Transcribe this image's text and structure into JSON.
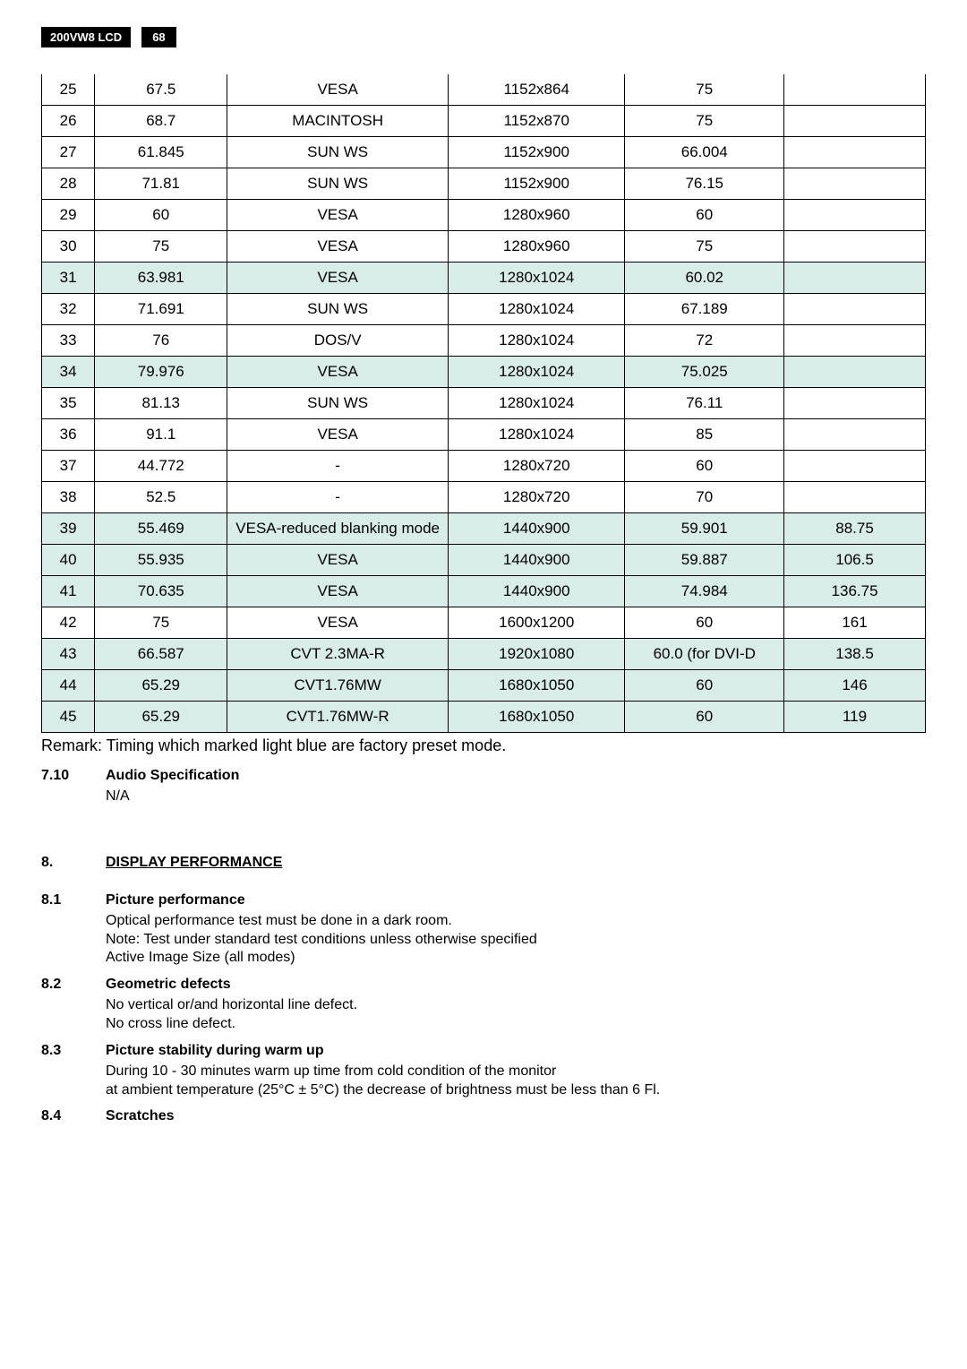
{
  "header": {
    "model": "200VW8 LCD",
    "page": "68"
  },
  "timing": {
    "col_widths_pct": [
      6,
      15,
      25,
      20,
      18,
      16
    ],
    "border_color": "#000000",
    "highlight_bg": "#d8ece9",
    "rows": [
      {
        "hl": false,
        "c": [
          "25",
          "67.5",
          "VESA",
          "1152x864",
          "75",
          ""
        ]
      },
      {
        "hl": false,
        "c": [
          "26",
          "68.7",
          "MACINTOSH",
          "1152x870",
          "75",
          ""
        ]
      },
      {
        "hl": false,
        "c": [
          "27",
          "61.845",
          "SUN WS",
          "1152x900",
          "66.004",
          ""
        ]
      },
      {
        "hl": false,
        "c": [
          "28",
          "71.81",
          "SUN WS",
          "1152x900",
          "76.15",
          ""
        ]
      },
      {
        "hl": false,
        "c": [
          "29",
          "60",
          "VESA",
          "1280x960",
          "60",
          ""
        ]
      },
      {
        "hl": false,
        "c": [
          "30",
          "75",
          "VESA",
          "1280x960",
          "75",
          ""
        ]
      },
      {
        "hl": true,
        "c": [
          "31",
          "63.981",
          "VESA",
          "1280x1024",
          "60.02",
          ""
        ]
      },
      {
        "hl": false,
        "c": [
          "32",
          "71.691",
          "SUN WS",
          "1280x1024",
          "67.189",
          ""
        ]
      },
      {
        "hl": false,
        "c": [
          "33",
          "76",
          "DOS/V",
          "1280x1024",
          "72",
          ""
        ]
      },
      {
        "hl": true,
        "c": [
          "34",
          "79.976",
          "VESA",
          "1280x1024",
          "75.025",
          ""
        ]
      },
      {
        "hl": false,
        "c": [
          "35",
          "81.13",
          "SUN WS",
          "1280x1024",
          "76.11",
          ""
        ]
      },
      {
        "hl": false,
        "c": [
          "36",
          "91.1",
          "VESA",
          "1280x1024",
          "85",
          ""
        ]
      },
      {
        "hl": false,
        "c": [
          "37",
          "44.772",
          "-",
          "1280x720",
          "60",
          ""
        ]
      },
      {
        "hl": false,
        "c": [
          "38",
          "52.5",
          "-",
          "1280x720",
          "70",
          ""
        ]
      },
      {
        "hl": true,
        "c": [
          "39",
          "55.469",
          "VESA-reduced blanking mode",
          "1440x900",
          "59.901",
          "88.75"
        ]
      },
      {
        "hl": true,
        "c": [
          "40",
          "55.935",
          "VESA",
          "1440x900",
          "59.887",
          "106.5"
        ]
      },
      {
        "hl": true,
        "c": [
          "41",
          "70.635",
          "VESA",
          "1440x900",
          "74.984",
          "136.75"
        ]
      },
      {
        "hl": false,
        "c": [
          "42",
          "75",
          "VESA",
          "1600x1200",
          "60",
          "161"
        ]
      },
      {
        "hl": true,
        "c": [
          "43",
          "66.587",
          "CVT 2.3MA-R",
          "1920x1080",
          "60.0 (for DVI-D",
          "138.5"
        ]
      },
      {
        "hl": true,
        "c": [
          "44",
          "65.29",
          "CVT1.76MW",
          "1680x1050",
          "60",
          "146"
        ]
      },
      {
        "hl": true,
        "c": [
          "45",
          "65.29",
          "CVT1.76MW-R",
          "1680x1050",
          "60",
          "119"
        ]
      }
    ]
  },
  "remark": "Remark: Timing which marked light blue are factory preset mode.",
  "s7_10": {
    "num": "7.10",
    "title": "Audio Specification",
    "body": "N/A"
  },
  "s8": {
    "num": "8.",
    "title": "DISPLAY PERFORMANCE"
  },
  "s8_1": {
    "num": "8.1",
    "title": "Picture performance",
    "l1": "Optical performance test must be done in a dark room.",
    "l2": "Note: Test under standard test conditions unless otherwise specified",
    "l3": "Active Image Size (all modes)"
  },
  "s8_2": {
    "num": "8.2",
    "title": "Geometric defects",
    "l1": "No vertical or/and horizontal line defect.",
    "l2": "No cross line defect."
  },
  "s8_3": {
    "num": "8.3",
    "title": "Picture stability during warm up",
    "l1": "During 10 - 30 minutes warm up time from cold condition of the monitor",
    "l2": "at ambient temperature (25°C ± 5°C) the decrease of brightness must be less than 6 Fl."
  },
  "s8_4": {
    "num": "8.4",
    "title": "Scratches"
  }
}
